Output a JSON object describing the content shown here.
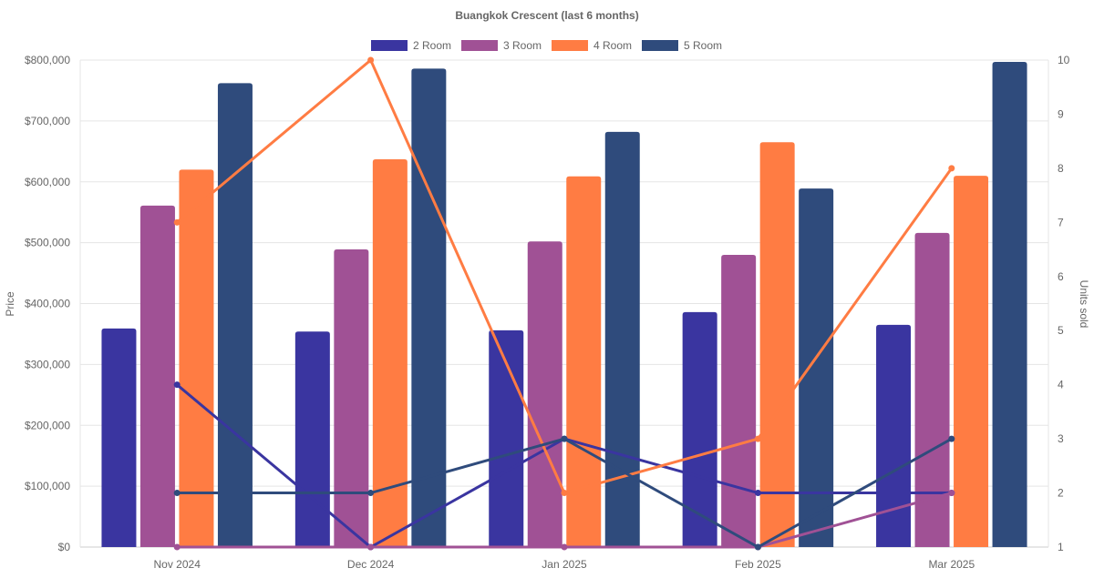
{
  "chart_data": {
    "type": "bar",
    "title": "Buangkok Crescent (last 6 months)",
    "categories": [
      "Nov 2024",
      "Dec 2024",
      "Jan 2025",
      "Feb 2025",
      "Mar 2025"
    ],
    "ylabel": "Price",
    "y2label": "Units sold",
    "ylim": [
      0,
      800000
    ],
    "y2lim": [
      1,
      10
    ],
    "yticks": [
      "$0",
      "$100,000",
      "$200,000",
      "$300,000",
      "$400,000",
      "$500,000",
      "$600,000",
      "$700,000",
      "$800,000"
    ],
    "y2ticks": [
      "1",
      "2",
      "3",
      "4",
      "5",
      "6",
      "7",
      "8",
      "9",
      "10"
    ],
    "legend_position": "top",
    "grid": true,
    "series": [
      {
        "name": "2 Room",
        "color": "#3a35a0",
        "price": [
          359000,
          354000,
          356000,
          386000,
          365000
        ],
        "units": [
          4,
          1,
          3,
          2,
          2
        ]
      },
      {
        "name": "3 Room",
        "color": "#a05195",
        "price": [
          561000,
          489000,
          502000,
          480000,
          516000
        ],
        "units": [
          1,
          1,
          1,
          1,
          2
        ]
      },
      {
        "name": "4 Room",
        "color": "#ff7c43",
        "price": [
          620000,
          637000,
          609000,
          665000,
          610000
        ],
        "units": [
          7,
          10,
          2,
          3,
          8
        ]
      },
      {
        "name": "5 Room",
        "color": "#2f4b7c",
        "price": [
          762000,
          786000,
          682000,
          589000,
          797000
        ],
        "units": [
          2,
          2,
          3,
          1,
          3
        ]
      }
    ]
  }
}
